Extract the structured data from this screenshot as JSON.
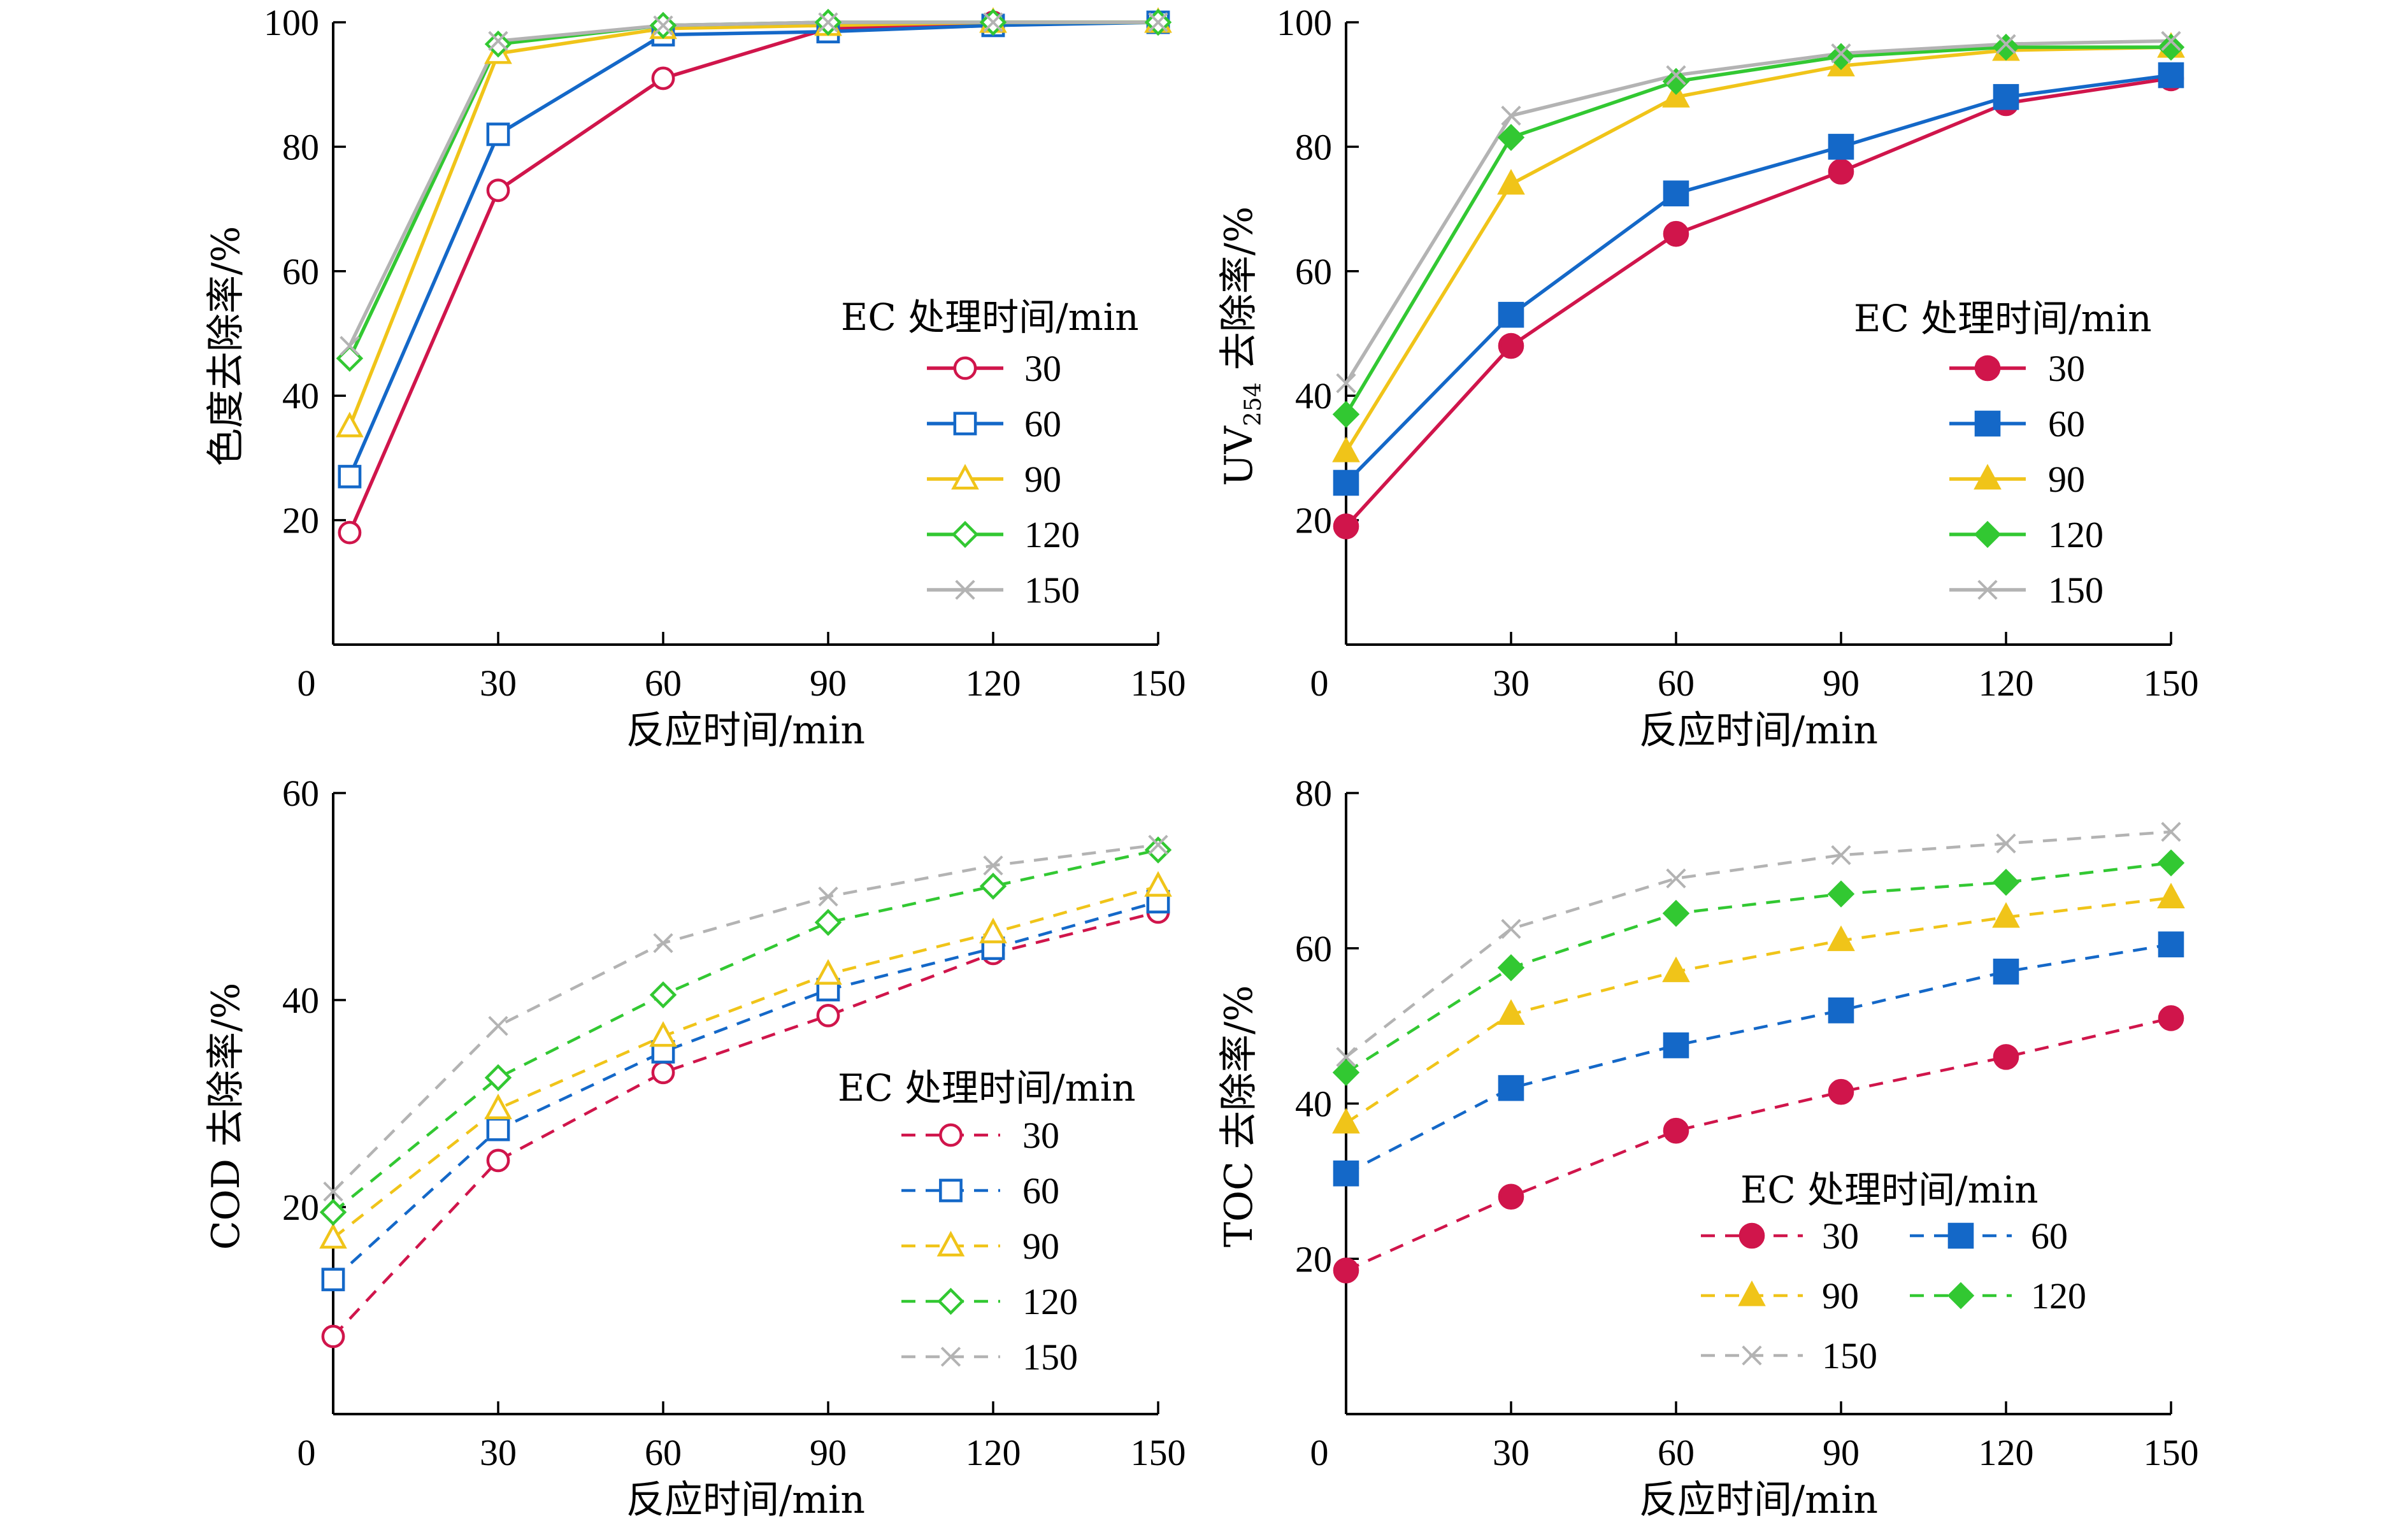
{
  "colors": {
    "30": "#d0154b",
    "60": "#1468c8",
    "90": "#f0c419",
    "120": "#32c832",
    "150": "#b3b3b3"
  },
  "chart_data": [
    {
      "id": "color",
      "type": "line",
      "line_style": "solid",
      "marker_fill": "hollow",
      "title": "",
      "xlabel": "反应时间/min",
      "ylabel": "色度去除率/%",
      "xlim": [
        0,
        150
      ],
      "ylim": [
        0,
        100
      ],
      "xticks": [
        0,
        30,
        60,
        90,
        120,
        150
      ],
      "yticks": [
        20,
        40,
        60,
        80,
        100
      ],
      "x": [
        3,
        30,
        60,
        90,
        120,
        150
      ],
      "legend_title": "EC 处理时间/min",
      "legend_position": "center-right",
      "series": [
        {
          "name": "30",
          "marker": "circle",
          "values": [
            18,
            73,
            91,
            99,
            100,
            100
          ]
        },
        {
          "name": "60",
          "marker": "square",
          "values": [
            27,
            82,
            98,
            98.5,
            99.5,
            100
          ]
        },
        {
          "name": "90",
          "marker": "triangle",
          "values": [
            35,
            95,
            99,
            99.5,
            100,
            100
          ]
        },
        {
          "name": "120",
          "marker": "diamond",
          "values": [
            46,
            96.5,
            99.5,
            100,
            100,
            100
          ]
        },
        {
          "name": "150",
          "marker": "cross",
          "values": [
            48,
            97,
            99.5,
            100,
            100,
            100
          ]
        }
      ]
    },
    {
      "id": "uv",
      "type": "line",
      "line_style": "solid",
      "marker_fill": "filled",
      "title": "",
      "xlabel": "反应时间/min",
      "ylabel": "UV254 去除率/%",
      "ylabel_parts": {
        "main": "UV",
        "sub": "254",
        "rest": " 去除率/%"
      },
      "xlim": [
        0,
        150
      ],
      "ylim": [
        0,
        100
      ],
      "xticks": [
        0,
        30,
        60,
        90,
        120,
        150
      ],
      "yticks": [
        20,
        40,
        60,
        80,
        100
      ],
      "x": [
        0,
        30,
        60,
        90,
        120,
        150
      ],
      "legend_title": "EC 处理时间/min",
      "legend_position": "center-right",
      "series": [
        {
          "name": "30",
          "marker": "circle",
          "values": [
            19,
            48,
            66,
            76,
            87,
            91
          ]
        },
        {
          "name": "60",
          "marker": "square",
          "values": [
            26,
            53,
            72.5,
            80,
            88,
            91.5
          ]
        },
        {
          "name": "90",
          "marker": "triangle",
          "values": [
            31,
            74,
            88,
            93,
            95.5,
            96
          ]
        },
        {
          "name": "120",
          "marker": "diamond",
          "values": [
            37,
            81.5,
            90.5,
            94.5,
            96,
            96
          ]
        },
        {
          "name": "150",
          "marker": "cross",
          "values": [
            42,
            85,
            91.5,
            95,
            96.5,
            97
          ]
        }
      ]
    },
    {
      "id": "cod",
      "type": "line",
      "line_style": "dashed",
      "marker_fill": "hollow",
      "title": "",
      "xlabel": "反应时间/min",
      "ylabel": "COD 去除率/%",
      "xlim": [
        0,
        150
      ],
      "ylim": [
        0,
        60
      ],
      "xticks": [
        0,
        30,
        60,
        90,
        120,
        150
      ],
      "yticks": [
        20,
        40,
        60
      ],
      "x": [
        0,
        30,
        60,
        90,
        120,
        150
      ],
      "legend_title": "EC 处理时间/min",
      "legend_position": "center-right",
      "series": [
        {
          "name": "30",
          "marker": "circle",
          "values": [
            7.5,
            24.5,
            33,
            38.5,
            44.5,
            48.5
          ]
        },
        {
          "name": "60",
          "marker": "square",
          "values": [
            13,
            27.5,
            35,
            41,
            45,
            49.5
          ]
        },
        {
          "name": "90",
          "marker": "triangle",
          "values": [
            17,
            29.5,
            36.5,
            42.5,
            46.5,
            51
          ]
        },
        {
          "name": "120",
          "marker": "diamond",
          "values": [
            19.5,
            32.5,
            40.5,
            47.5,
            51,
            54.5
          ]
        },
        {
          "name": "150",
          "marker": "cross",
          "values": [
            21.5,
            37.5,
            45.5,
            50,
            53,
            55
          ]
        }
      ]
    },
    {
      "id": "toc",
      "type": "line",
      "line_style": "dashed",
      "marker_fill": "filled",
      "title": "",
      "xlabel": "反应时间/min",
      "ylabel": "TOC 去除率/%",
      "xlim": [
        0,
        150
      ],
      "ylim": [
        0,
        80
      ],
      "xticks": [
        0,
        30,
        60,
        90,
        120,
        150
      ],
      "yticks": [
        20,
        40,
        60,
        80
      ],
      "x": [
        0,
        30,
        60,
        90,
        120,
        150
      ],
      "legend_title": "EC 处理时间/min",
      "legend_position": "bottom-center",
      "legend_columns": 2,
      "series": [
        {
          "name": "30",
          "marker": "circle",
          "values": [
            18.5,
            28,
            36.5,
            41.5,
            46,
            51
          ]
        },
        {
          "name": "60",
          "marker": "square",
          "values": [
            31,
            42,
            47.5,
            52,
            57,
            60.5
          ]
        },
        {
          "name": "90",
          "marker": "triangle",
          "values": [
            37.5,
            51.5,
            57,
            61,
            64,
            66.5
          ]
        },
        {
          "name": "120",
          "marker": "diamond",
          "values": [
            44,
            57.5,
            64.5,
            67,
            68.5,
            71
          ]
        },
        {
          "name": "150",
          "marker": "cross",
          "values": [
            46,
            62.5,
            69,
            72,
            73.5,
            75
          ]
        }
      ]
    }
  ]
}
